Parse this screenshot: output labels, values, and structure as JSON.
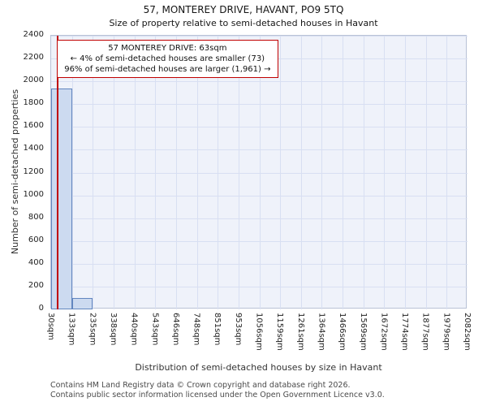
{
  "chart_data": {
    "type": "bar",
    "title": "57, MONTEREY DRIVE, HAVANT, PO9 5TQ",
    "subtitle": "Size of property relative to semi-detached houses in Havant",
    "xlabel": "Distribution of semi-detached houses by size in Havant",
    "ylabel": "Number of semi-detached properties",
    "ylim": [
      0,
      2400
    ],
    "ytick_step": 200,
    "grid": true,
    "bin_labels": [
      "30sqm",
      "133sqm",
      "235sqm",
      "338sqm",
      "440sqm",
      "543sqm",
      "646sqm",
      "748sqm",
      "851sqm",
      "953sqm",
      "1056sqm",
      "1159sqm",
      "1261sqm",
      "1364sqm",
      "1466sqm",
      "1569sqm",
      "1672sqm",
      "1774sqm",
      "1877sqm",
      "1979sqm",
      "2082sqm"
    ],
    "bin_edges_sqm": [
      30,
      133,
      235,
      338,
      440,
      543,
      646,
      748,
      851,
      953,
      1056,
      1159,
      1261,
      1364,
      1466,
      1569,
      1672,
      1774,
      1877,
      1979,
      2082
    ],
    "values": [
      1940,
      100,
      0,
      0,
      0,
      0,
      0,
      0,
      0,
      0,
      0,
      0,
      0,
      0,
      0,
      0,
      0,
      0,
      0,
      0
    ],
    "marker": {
      "sqm": 63,
      "color": "#c00000"
    },
    "annotation": {
      "line1": "57 MONTEREY DRIVE: 63sqm",
      "line2": "← 4% of semi-detached houses are smaller (73)",
      "line3": "96% of semi-detached houses are larger (1,961) →"
    },
    "colors": {
      "bar_fill": "#ccdaf0",
      "bar_stroke": "#6286bf",
      "grid": "#d8dff2",
      "plot_bg": "#eff2fa",
      "marker": "#c00000"
    }
  },
  "footer": {
    "line1": "Contains HM Land Registry data © Crown copyright and database right 2026.",
    "line2": "Contains public sector information licensed under the Open Government Licence v3.0."
  }
}
